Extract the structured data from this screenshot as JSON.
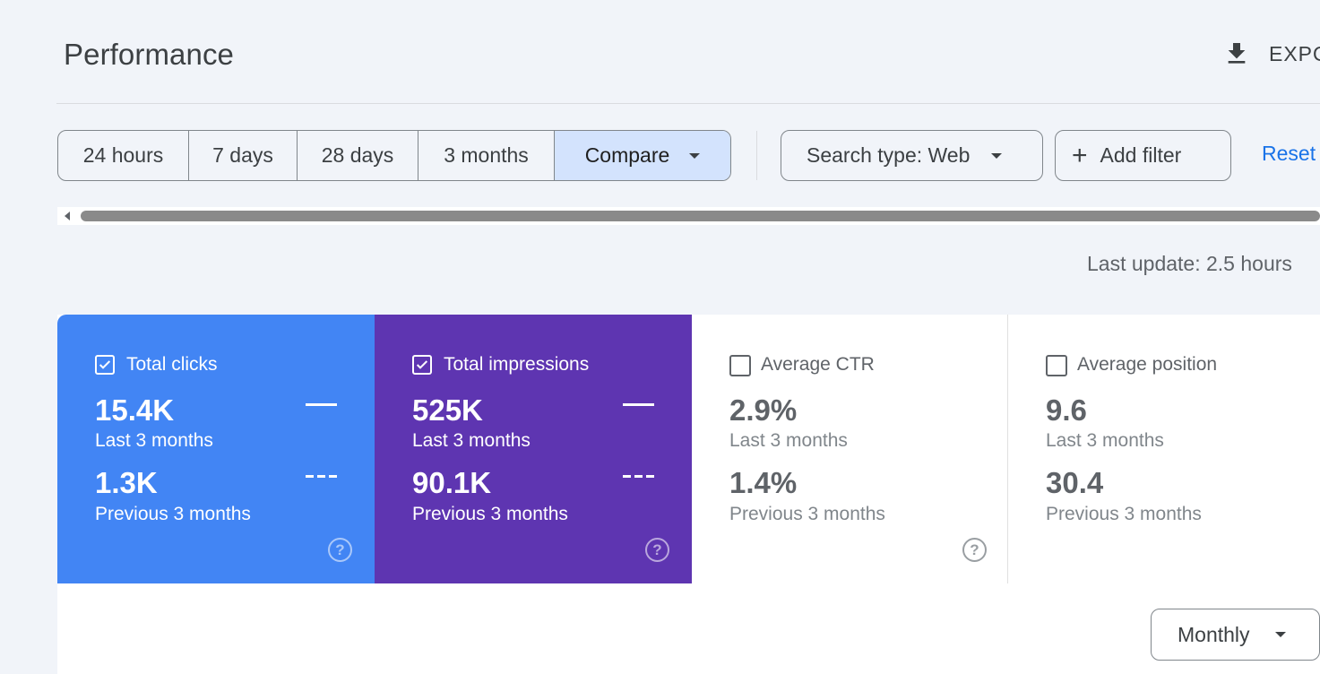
{
  "header": {
    "title": "Performance",
    "export_label": "EXPORT"
  },
  "filters": {
    "ranges": [
      "24 hours",
      "7 days",
      "28 days",
      "3 months"
    ],
    "compare_label": "Compare",
    "search_type_label": "Search type: Web",
    "add_filter_label": "Add filter",
    "reset_label": "Reset"
  },
  "last_update": "Last update: 2.5 hours",
  "metrics": [
    {
      "label": "Total clicks",
      "checked": true,
      "current_value": "15.4K",
      "current_period": "Last 3 months",
      "previous_value": "1.3K",
      "previous_period": "Previous 3 months",
      "color": "#4285f4"
    },
    {
      "label": "Total impressions",
      "checked": true,
      "current_value": "525K",
      "current_period": "Last 3 months",
      "previous_value": "90.1K",
      "previous_period": "Previous 3 months",
      "color": "#5e35b1"
    },
    {
      "label": "Average CTR",
      "checked": false,
      "current_value": "2.9%",
      "current_period": "Last 3 months",
      "previous_value": "1.4%",
      "previous_period": "Previous 3 months",
      "color": "#ffffff"
    },
    {
      "label": "Average position",
      "checked": false,
      "current_value": "9.6",
      "current_period": "Last 3 months",
      "previous_value": "30.4",
      "previous_period": "Previous 3 months",
      "color": "#ffffff"
    }
  ],
  "help_glyph": "?",
  "interval_select": {
    "value": "Monthly"
  },
  "icons": {
    "export": "download-icon",
    "dropdown": "chevron-down-icon",
    "add": "plus-icon",
    "check": "check-icon",
    "help": "help-circle-icon"
  }
}
